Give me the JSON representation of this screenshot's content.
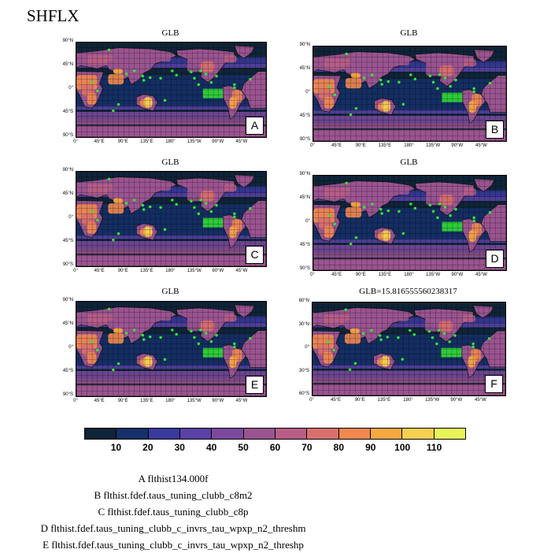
{
  "title": "SHFLX",
  "chart_data": {
    "type": "heatmap",
    "variable": "SHFLX",
    "colorbar": {
      "ticks": [
        "10",
        "20",
        "30",
        "40",
        "50",
        "60",
        "70",
        "80",
        "90",
        "100",
        "110"
      ],
      "colors": [
        "#0f2438",
        "#15306a",
        "#3a3a9e",
        "#5a42a6",
        "#7b4a9e",
        "#9a5490",
        "#b85e86",
        "#d8706e",
        "#f08850",
        "#f8a840",
        "#f6d050",
        "#e8f458"
      ]
    },
    "panels": [
      {
        "id": "A",
        "title": "GLB",
        "label": "A",
        "lat_ticks": [
          "90°N",
          "45°N",
          "0°",
          "45°S",
          "90°S"
        ],
        "lon_ticks": [
          "0°",
          "45°E",
          "90°E",
          "135°E",
          "180°",
          "135°W",
          "90°W",
          "45°W"
        ]
      },
      {
        "id": "B",
        "title": "GLB",
        "label": "B",
        "lat_ticks": [
          "90°N",
          "45°N",
          "0°",
          "45°S",
          "90°S"
        ],
        "lon_ticks": [
          "0°",
          "45°E",
          "90°E",
          "135°E",
          "180°",
          "135°W",
          "90°W",
          "45°W"
        ]
      },
      {
        "id": "C",
        "title": "GLB",
        "label": "C",
        "lat_ticks": [
          "90°N",
          "45°N",
          "0°",
          "45°S",
          "90°S"
        ],
        "lon_ticks": [
          "0°",
          "45°E",
          "90°E",
          "135°E",
          "180°",
          "135°W",
          "90°W",
          "45°W"
        ]
      },
      {
        "id": "D",
        "title": "GLB",
        "label": "D",
        "lat_ticks": [
          "90°N",
          "45°N",
          "0°",
          "45°S",
          "90°S"
        ],
        "lon_ticks": [
          "0°",
          "45°E",
          "90°E",
          "135°E",
          "180°",
          "135°W",
          "90°W",
          "45°W"
        ]
      },
      {
        "id": "E",
        "title": "GLB",
        "label": "E",
        "lat_ticks": [
          "90°N",
          "45°N",
          "0°",
          "45°S",
          "90°S"
        ],
        "lon_ticks": [
          "0°",
          "45°E",
          "90°E",
          "135°E",
          "180°",
          "135°W",
          "90°W",
          "45°W"
        ]
      },
      {
        "id": "F",
        "title": "GLB=15.816555560238317",
        "label": "F",
        "lat_ticks": [
          "60°N",
          "30°N",
          "0°",
          "30°S",
          "60°S"
        ],
        "lon_ticks": [
          "0°",
          "45°E",
          "90°E",
          "135°E",
          "180°",
          "135°W",
          "90°W",
          "45°W"
        ]
      }
    ],
    "legend": [
      "A  flthist134.000f",
      "B  flthist.fdef.taus_tuning_clubb_c8m2",
      "C  flthist.fdef.taus_tuning_clubb_c8p",
      "D  flthist.fdef.taus_tuning_clubb_c_invrs_tau_wpxp_n2_threshm",
      "E  flthist.fdef.taus_tuning_clubb_c_invrs_tau_wpxp_n2_threshp"
    ],
    "grid": true
  }
}
